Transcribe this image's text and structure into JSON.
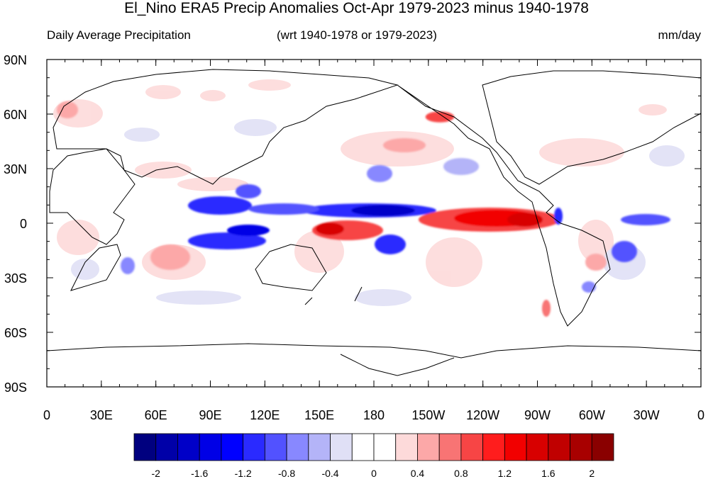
{
  "title": "El_Nino ERA5 Precip Anomalies Oct-Apr 1979-2023 minus 1940-1978",
  "subtitle_left": "Daily Average Precipitation",
  "subtitle_center": "(wrt 1940-1978 or 1979-2023)",
  "subtitle_right": "mm/day",
  "lat_labels": [
    "90N",
    "60N",
    "30N",
    "0",
    "30S",
    "60S",
    "90S"
  ],
  "lon_labels": [
    "0",
    "30E",
    "60E",
    "90E",
    "120E",
    "150E",
    "180",
    "150W",
    "120W",
    "90W",
    "60W",
    "30W",
    "0"
  ],
  "colorbar": {
    "colors": [
      "#00007f",
      "#0000a8",
      "#0000c8",
      "#0000e6",
      "#0000ff",
      "#2a2aff",
      "#5252ff",
      "#8888ff",
      "#b4b4f8",
      "#e0e0f6",
      "#ffffff",
      "#ffffff",
      "#fddada",
      "#fca8a8",
      "#f87474",
      "#f74545",
      "#ff1d1d",
      "#f20000",
      "#d80000",
      "#c00000",
      "#a80000",
      "#8a0000"
    ],
    "labels": [
      "-2",
      "-1.6",
      "-1.2",
      "-0.8",
      "-0.4",
      "0",
      "0.4",
      "0.8",
      "1.2",
      "1.6",
      "2"
    ]
  }
}
